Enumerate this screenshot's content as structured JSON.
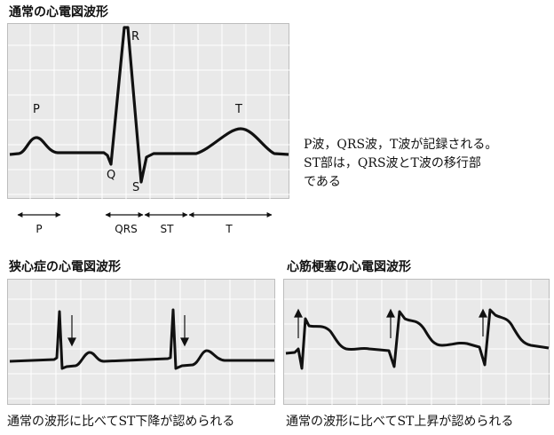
{
  "normal": {
    "title": "通常の心電図波形",
    "labels": {
      "p": "P",
      "q": "Q",
      "r": "R",
      "s": "S",
      "t": "T"
    },
    "description": [
      "P波，QRS波，T波が記録される。",
      "ST部は，QRS波とT波の移行部",
      "である"
    ],
    "intervals": {
      "p": "P",
      "qrs": "QRS",
      "st": "ST",
      "t": "T"
    }
  },
  "angina": {
    "title": "狭心症の心電図波形",
    "caption": "通常の波形に比べてST下降が認められる"
  },
  "infarction": {
    "title": "心筋梗塞の心電図波形",
    "caption": "通常の波形に比べてST上昇が認められる"
  }
}
